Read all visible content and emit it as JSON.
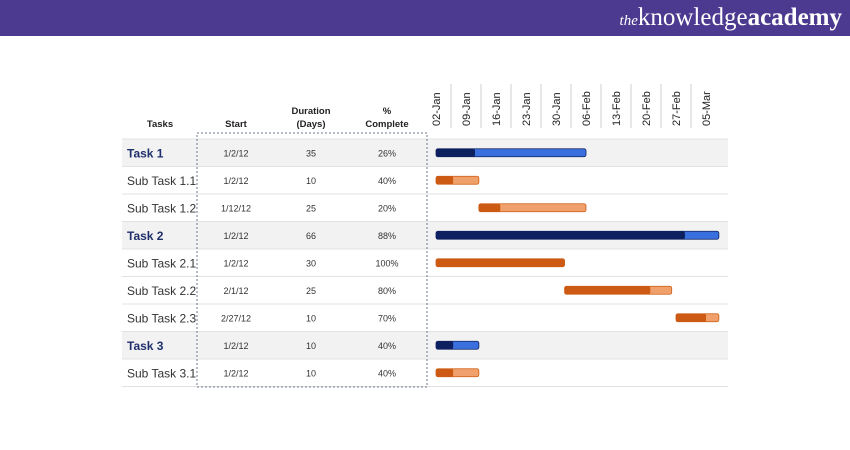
{
  "brand": {
    "prefix": "the",
    "middle": "knowledge",
    "suffix": "academy"
  },
  "headers": {
    "tasks": "Tasks",
    "start": "Start",
    "duration_line1": "Duration",
    "duration_line2": "(Days)",
    "complete_line1": "%",
    "complete_line2": "Complete"
  },
  "colors": {
    "header_bar": "#4b3a8f",
    "main_done": "#0d2160",
    "main_remaining": "#3a6fde",
    "sub_done": "#cc5a12",
    "sub_remaining": "#f0a06a",
    "group_row_bg": "#f2f2f2"
  },
  "chart_data": {
    "type": "gantt",
    "timeline_start": "2012-01-02",
    "x_ticks": [
      {
        "date": "2012-01-02",
        "label": "02-Jan"
      },
      {
        "date": "2012-01-09",
        "label": "09-Jan"
      },
      {
        "date": "2012-01-16",
        "label": "16-Jan"
      },
      {
        "date": "2012-01-23",
        "label": "23-Jan"
      },
      {
        "date": "2012-01-30",
        "label": "30-Jan"
      },
      {
        "date": "2012-02-06",
        "label": "06-Feb"
      },
      {
        "date": "2012-02-13",
        "label": "13-Feb"
      },
      {
        "date": "2012-02-20",
        "label": "20-Feb"
      },
      {
        "date": "2012-02-27",
        "label": "27-Feb"
      },
      {
        "date": "2012-03-05",
        "label": "05-Mar"
      }
    ],
    "tasks": [
      {
        "name": "Task 1",
        "level": "main",
        "start": "1/2/12",
        "start_date": "2012-01-02",
        "duration": "35",
        "complete": "26%",
        "complete_frac": 0.26
      },
      {
        "name": "Sub Task 1.1",
        "level": "sub",
        "start": "1/2/12",
        "start_date": "2012-01-02",
        "duration": "10",
        "complete": "40%",
        "complete_frac": 0.4
      },
      {
        "name": "Sub Task 1.2",
        "level": "sub",
        "start": "1/12/12",
        "start_date": "2012-01-12",
        "duration": "25",
        "complete": "20%",
        "complete_frac": 0.2
      },
      {
        "name": "Task 2",
        "level": "main",
        "start": "1/2/12",
        "start_date": "2012-01-02",
        "duration": "66",
        "complete": "88%",
        "complete_frac": 0.88
      },
      {
        "name": "Sub Task 2.1",
        "level": "sub",
        "start": "1/2/12",
        "start_date": "2012-01-02",
        "duration": "30",
        "complete": "100%",
        "complete_frac": 1.0
      },
      {
        "name": "Sub Task 2.2",
        "level": "sub",
        "start": "2/1/12",
        "start_date": "2012-02-01",
        "duration": "25",
        "complete": "80%",
        "complete_frac": 0.8
      },
      {
        "name": "Sub Task 2.3",
        "level": "sub",
        "start": "2/27/12",
        "start_date": "2012-02-27",
        "duration": "10",
        "complete": "70%",
        "complete_frac": 0.7
      },
      {
        "name": "Task 3",
        "level": "main",
        "start": "1/2/12",
        "start_date": "2012-01-02",
        "duration": "10",
        "complete": "40%",
        "complete_frac": 0.4
      },
      {
        "name": "Sub Task 3.1",
        "level": "sub",
        "start": "1/2/12",
        "start_date": "2012-01-02",
        "duration": "10",
        "complete": "40%",
        "complete_frac": 0.4
      }
    ]
  }
}
